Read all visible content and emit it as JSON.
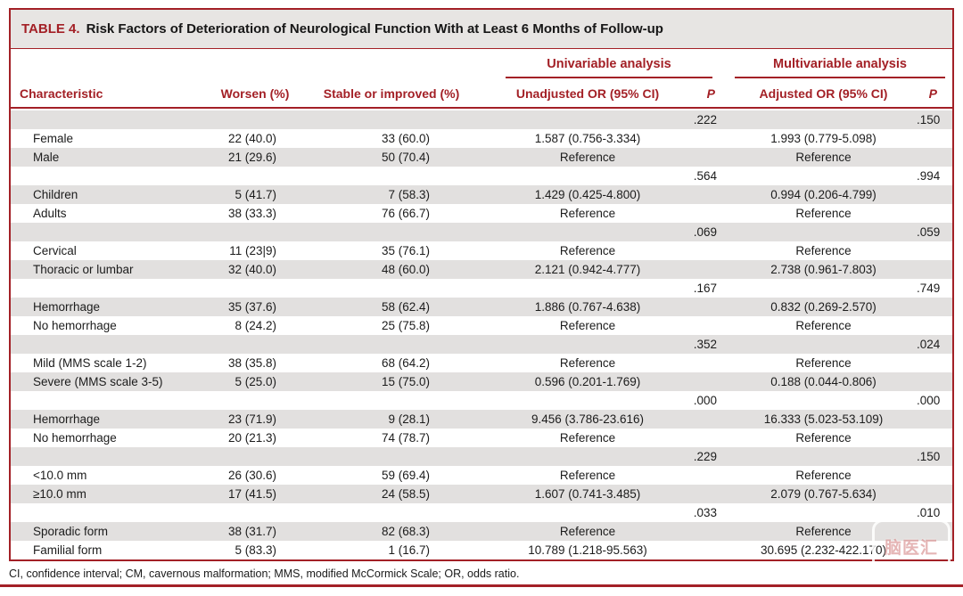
{
  "table": {
    "label": "TABLE 4.",
    "title": "Risk Factors of Deterioration of Neurological Function With at Least 6 Months of Follow-up",
    "span_headers": {
      "univariable": "Univariable analysis",
      "multivariable": "Multivariable analysis"
    },
    "columns": [
      "Characteristic",
      "Worsen (%)",
      "Stable or improved (%)",
      "Unadjusted OR (95% CI)",
      "P",
      "Adjusted OR (95% CI)",
      "P"
    ],
    "rows": [
      [
        "",
        "",
        "",
        "",
        ".222",
        "",
        ".150"
      ],
      [
        "Female",
        "22 (40.0)",
        "33 (60.0)",
        "1.587 (0.756-3.334)",
        "",
        "1.993 (0.779-5.098)",
        ""
      ],
      [
        "Male",
        "21 (29.6)",
        "50 (70.4)",
        "Reference",
        "",
        "Reference",
        ""
      ],
      [
        "",
        "",
        "",
        "",
        ".564",
        "",
        ".994"
      ],
      [
        "Children",
        "5 (41.7)",
        "7 (58.3)",
        "1.429 (0.425-4.800)",
        "",
        "0.994 (0.206-4.799)",
        ""
      ],
      [
        "Adults",
        "38 (33.3)",
        "76 (66.7)",
        "Reference",
        "",
        "Reference",
        ""
      ],
      [
        "",
        "",
        "",
        "",
        ".069",
        "",
        ".059"
      ],
      [
        "Cervical",
        "11 (23|9)",
        "35 (76.1)",
        "Reference",
        "",
        "Reference",
        ""
      ],
      [
        "Thoracic or lumbar",
        "32 (40.0)",
        "48 (60.0)",
        "2.121 (0.942-4.777)",
        "",
        "2.738 (0.961-7.803)",
        ""
      ],
      [
        "",
        "",
        "",
        "",
        ".167",
        "",
        ".749"
      ],
      [
        "Hemorrhage",
        "35 (37.6)",
        "58 (62.4)",
        "1.886 (0.767-4.638)",
        "",
        "0.832 (0.269-2.570)",
        ""
      ],
      [
        "No hemorrhage",
        "8 (24.2)",
        "25 (75.8)",
        "Reference",
        "",
        "Reference",
        ""
      ],
      [
        "",
        "",
        "",
        "",
        ".352",
        "",
        ".024"
      ],
      [
        "Mild (MMS scale 1-2)",
        "38 (35.8)",
        "68 (64.2)",
        "Reference",
        "",
        "Reference",
        ""
      ],
      [
        "Severe (MMS scale 3-5)",
        "5 (25.0)",
        "15 (75.0)",
        "0.596 (0.201-1.769)",
        "",
        "0.188 (0.044-0.806)",
        ""
      ],
      [
        "",
        "",
        "",
        "",
        ".000",
        "",
        ".000"
      ],
      [
        "Hemorrhage",
        "23 (71.9)",
        "9 (28.1)",
        "9.456 (3.786-23.616)",
        "",
        "16.333 (5.023-53.109)",
        ""
      ],
      [
        "No hemorrhage",
        "20 (21.3)",
        "74 (78.7)",
        "Reference",
        "",
        "Reference",
        ""
      ],
      [
        "",
        "",
        "",
        "",
        ".229",
        "",
        ".150"
      ],
      [
        "<10.0 mm",
        "26 (30.6)",
        "59 (69.4)",
        "Reference",
        "",
        "Reference",
        ""
      ],
      [
        "≥10.0 mm",
        "17 (41.5)",
        "24 (58.5)",
        "1.607 (0.741-3.485)",
        "",
        "2.079 (0.767-5.634)",
        ""
      ],
      [
        "",
        "",
        "",
        "",
        ".033",
        "",
        ".010"
      ],
      [
        "Sporadic form",
        "38 (31.7)",
        "82 (68.3)",
        "Reference",
        "",
        "Reference",
        ""
      ],
      [
        "Familial form",
        "5 (83.3)",
        "1 (16.7)",
        "10.789 (1.218-95.563)",
        "",
        "30.695 (2.232-422.170)",
        ""
      ]
    ],
    "footnote": "CI, confidence interval; CM, cavernous malformation; MMS, modified McCormick Scale; OR, odds ratio."
  },
  "watermark": {
    "text": "脑医汇"
  },
  "colors": {
    "accent_red": "#a32026",
    "stripe_gray": "#e2e0df",
    "titlebar_gray": "#e7e5e3"
  }
}
